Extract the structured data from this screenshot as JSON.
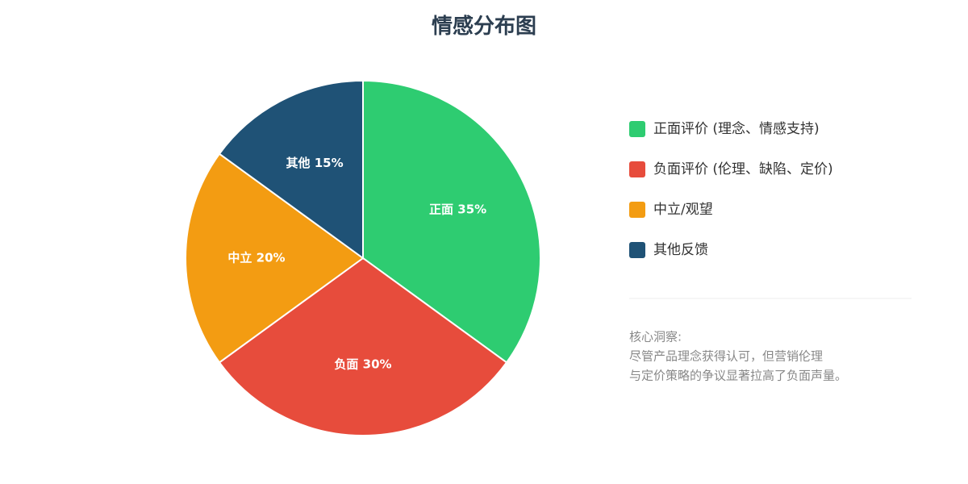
{
  "chart_data": {
    "type": "pie",
    "title": "情感分布图",
    "categories": [
      "正面评价 (理念、情感支持)",
      "负面评价 (伦理、缺陷、定价)",
      "中立/观望",
      "其他反馈"
    ],
    "values": [
      35,
      30,
      20,
      15
    ],
    "value_labels": [
      "正面 35%",
      "负面 30%",
      "中立 20%",
      "其他 15%"
    ],
    "colors": [
      "#2ecc71",
      "#e74c3c",
      "#f39c12",
      "#1f5276"
    ],
    "legend": "right",
    "annotation": {
      "title": "核心洞察:",
      "lines": [
        "尽管产品理念获得认可，但营销伦理",
        "与定价策略的争议显著拉高了负面声量。"
      ]
    }
  }
}
